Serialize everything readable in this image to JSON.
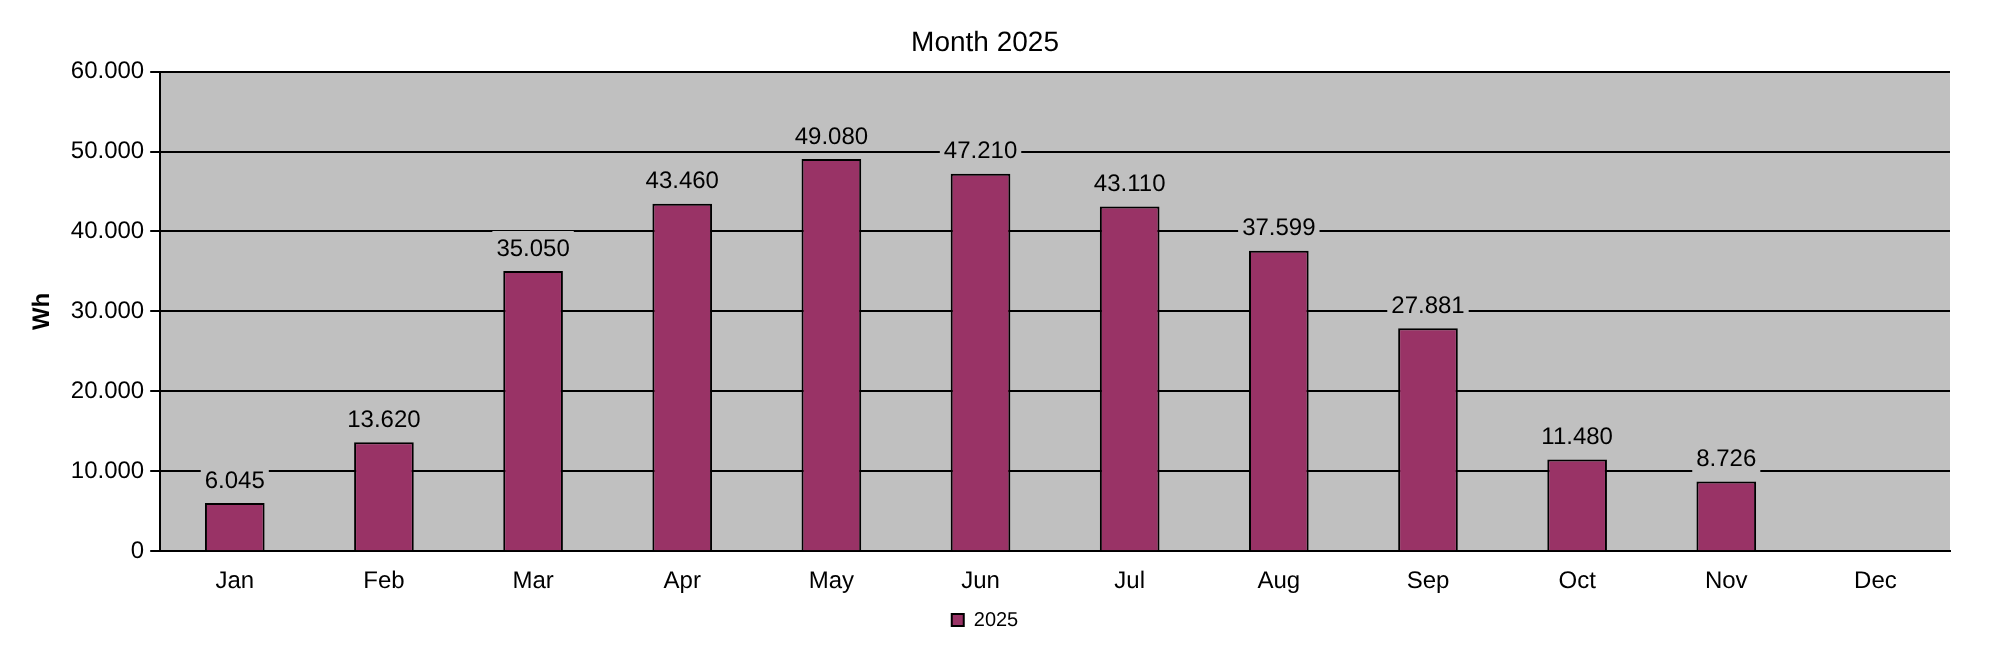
{
  "chart_data": {
    "type": "bar",
    "title": "Month 2025",
    "ylabel": "Wh",
    "categories": [
      "Jan",
      "Feb",
      "Mar",
      "Apr",
      "May",
      "Jun",
      "Jul",
      "Aug",
      "Sep",
      "Oct",
      "Nov",
      "Dec"
    ],
    "series": [
      {
        "name": "2025",
        "color": "#993366",
        "values": [
          6045,
          13620,
          35050,
          43460,
          49080,
          47210,
          43110,
          37599,
          27881,
          11480,
          8726,
          null
        ],
        "value_labels": [
          "6.045",
          "13.620",
          "35.050",
          "43.460",
          "49.080",
          "47.210",
          "43.110",
          "37.599",
          "27.881",
          "11.480",
          "8.726",
          null
        ]
      }
    ],
    "ylim": [
      0,
      60000
    ],
    "yticks": [
      {
        "value": 0,
        "label": "0"
      },
      {
        "value": 10000,
        "label": "10.000"
      },
      {
        "value": 20000,
        "label": "20.000"
      },
      {
        "value": 30000,
        "label": "30.000"
      },
      {
        "value": 40000,
        "label": "40.000"
      },
      {
        "value": 50000,
        "label": "50.000"
      },
      {
        "value": 60000,
        "label": "60.000"
      }
    ],
    "grid": "y",
    "legend": "bottom"
  }
}
